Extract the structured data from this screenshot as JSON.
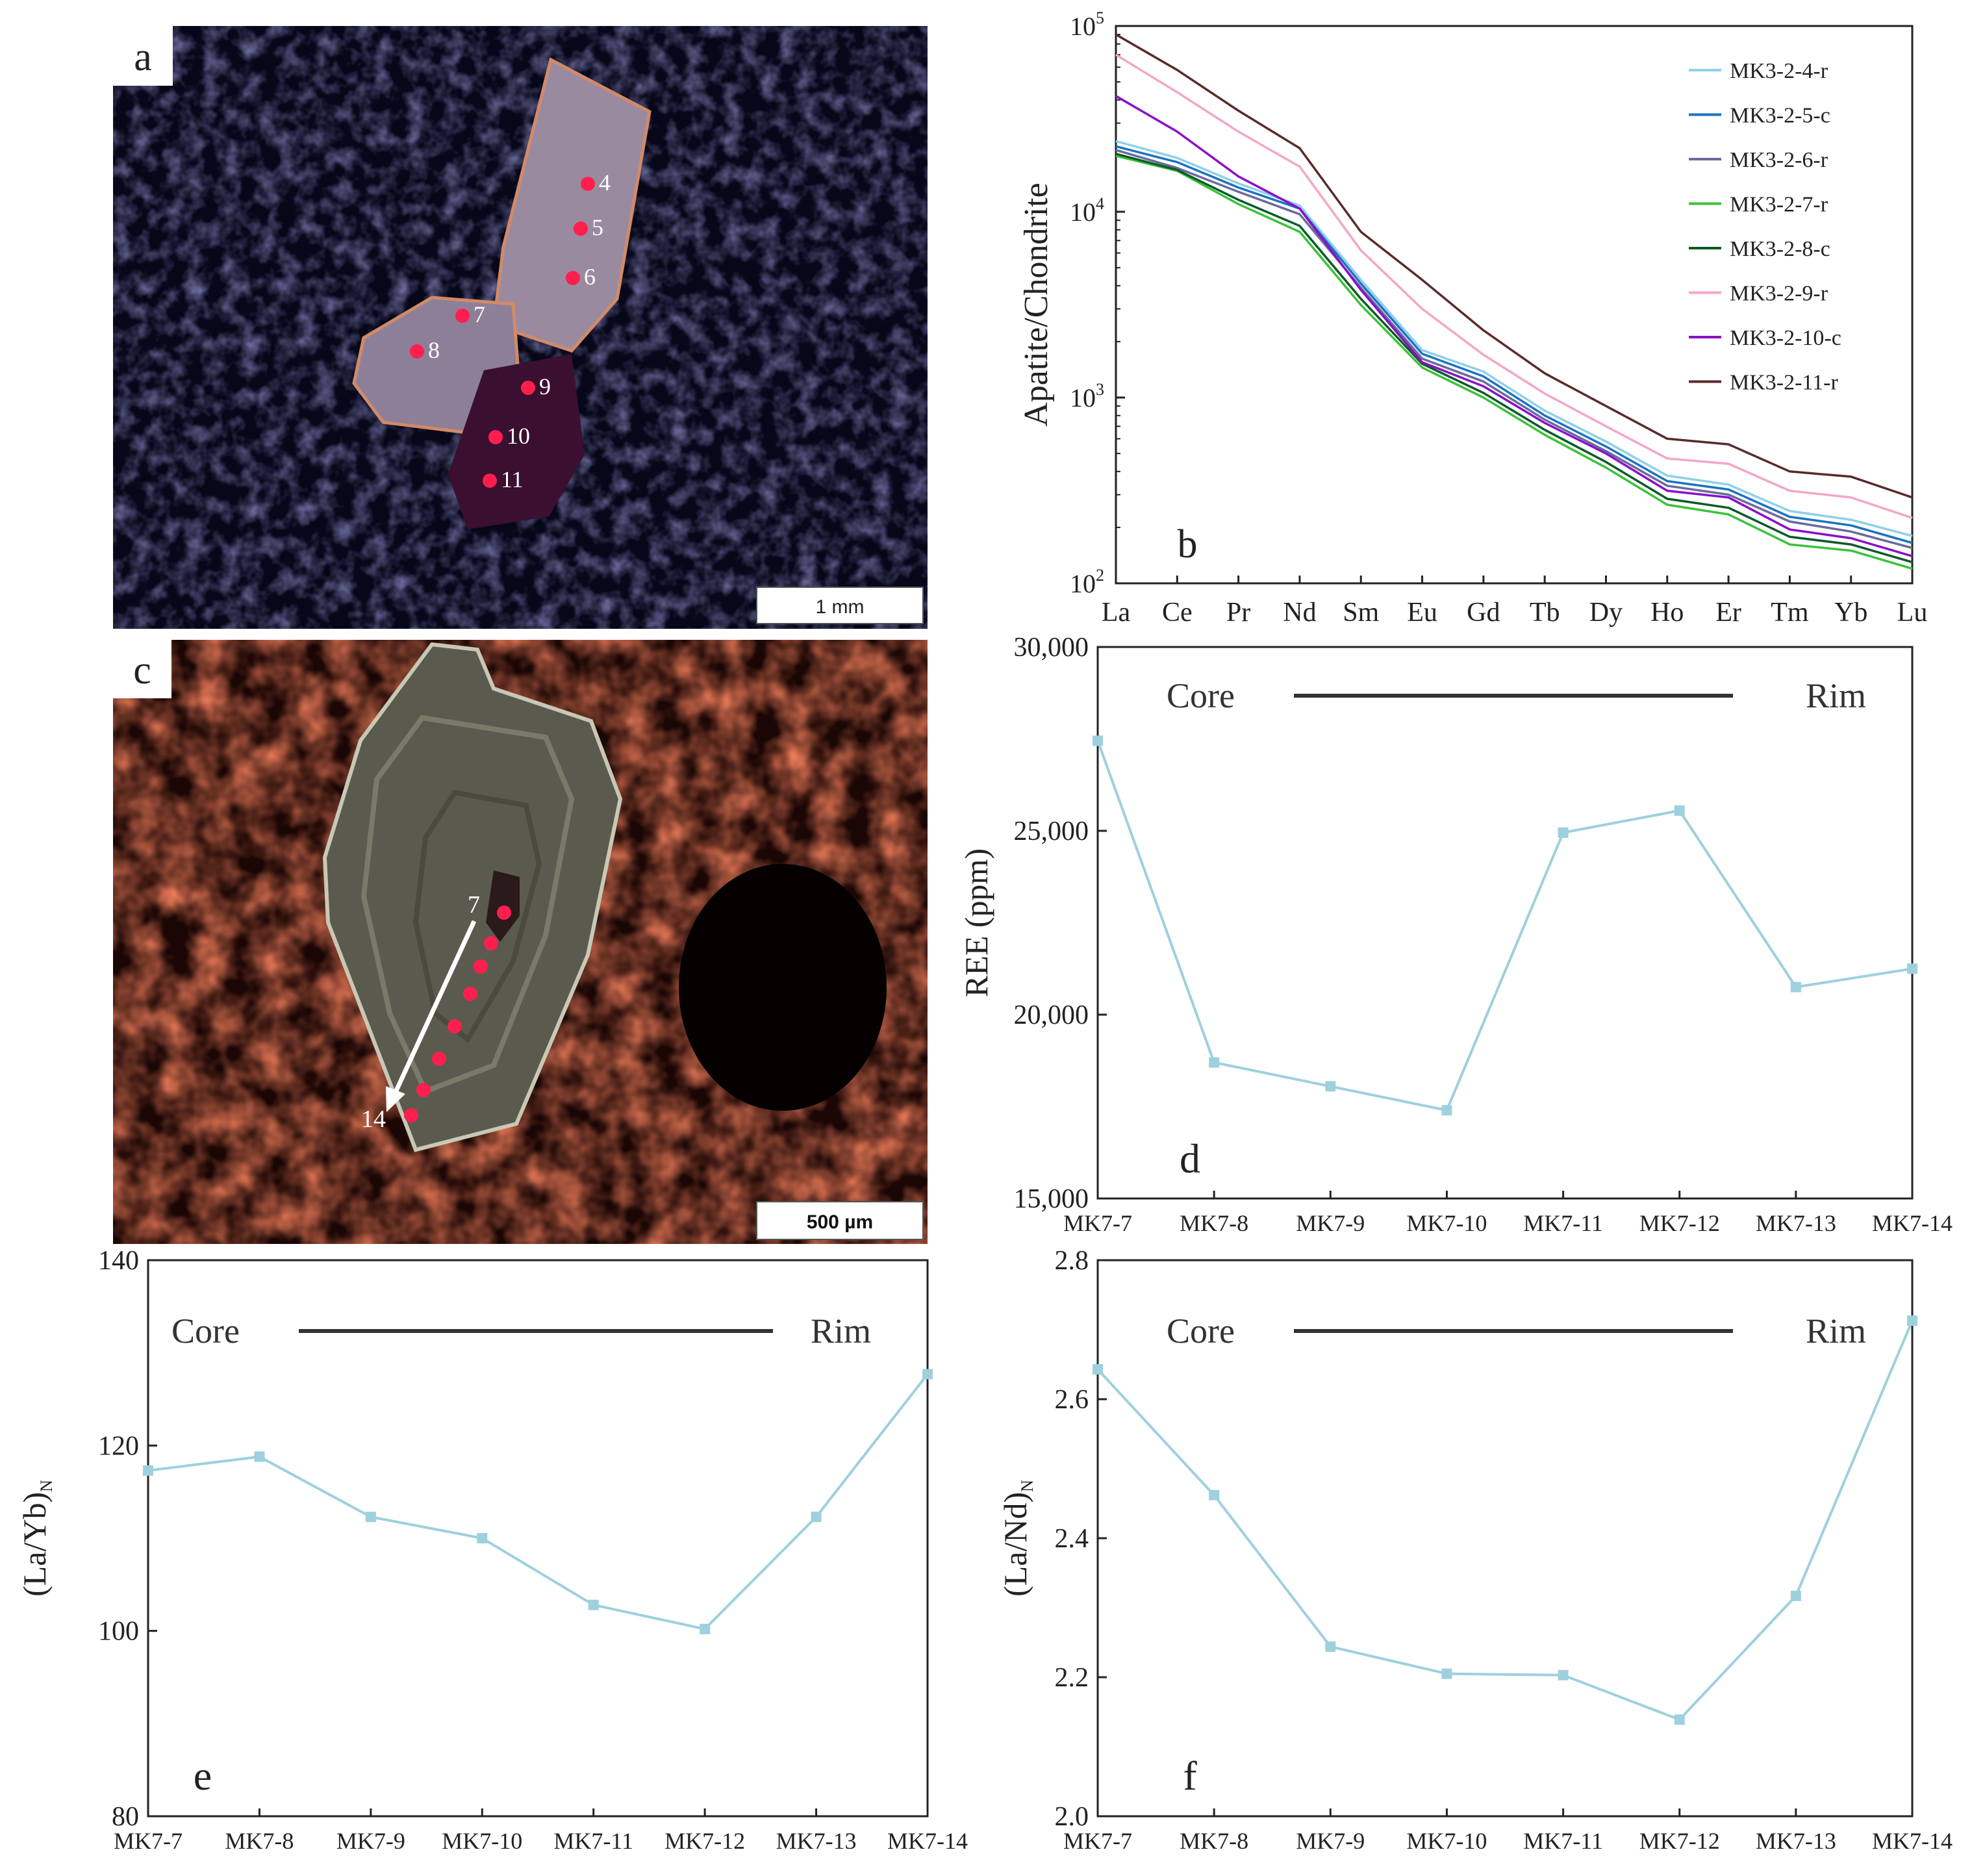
{
  "colors": {
    "light_blue": "#9ed0de",
    "pink": "#f2a6c0",
    "marker_red": "#ff1f4e",
    "dark_brown": "#5a2a2a",
    "purple": "#8a10c8",
    "cl_red": "#8a1e0c",
    "cl_blue": "#2a2a7a",
    "grain_grey": "#5b5a4e"
  },
  "panel_a": {
    "label": "a",
    "scale_bar": "1 mm",
    "points": [
      "4",
      "5",
      "6",
      "7",
      "8",
      "9",
      "10",
      "11"
    ]
  },
  "panel_c": {
    "label": "c",
    "scale_bar": "500 µm",
    "start_point": "7",
    "end_point": "14"
  },
  "chart_data": [
    {
      "panel": "b",
      "type": "line",
      "yscale": "log",
      "ylabel": "Apatite/Chondrite",
      "ylim": [
        100,
        100000
      ],
      "yticks": [
        {
          "base": "10",
          "exp": "2",
          "value": 100
        },
        {
          "base": "10",
          "exp": "3",
          "value": 1000
        },
        {
          "base": "10",
          "exp": "4",
          "value": 10000
        },
        {
          "base": "10",
          "exp": "5",
          "value": 100000
        }
      ],
      "categories": [
        "La",
        "Ce",
        "Pr",
        "Nd",
        "Sm",
        "Eu",
        "Gd",
        "Tb",
        "Dy",
        "Ho",
        "Er",
        "Tm",
        "Yb",
        "Lu"
      ],
      "legend_position": "top-right",
      "series": [
        {
          "name": "MK3-2-4-r",
          "color": "#8fd0e6",
          "values": [
            24000,
            19500,
            14200,
            10800,
            4300,
            1800,
            1380,
            850,
            580,
            380,
            340,
            245,
            220,
            180
          ]
        },
        {
          "name": "MK3-2-5-c",
          "color": "#1b73c4",
          "values": [
            22500,
            18500,
            13500,
            10400,
            4100,
            1720,
            1300,
            800,
            545,
            355,
            320,
            228,
            205,
            165
          ]
        },
        {
          "name": "MK3-2-6-r",
          "color": "#6a6a9a",
          "values": [
            21500,
            17200,
            12800,
            9700,
            3900,
            1620,
            1220,
            760,
            515,
            335,
            300,
            215,
            190,
            155
          ]
        },
        {
          "name": "MK3-2-7-r",
          "color": "#3ac23a",
          "values": [
            20000,
            16600,
            11000,
            7800,
            3150,
            1450,
            1000,
            630,
            420,
            265,
            235,
            162,
            150,
            120
          ]
        },
        {
          "name": "MK3-2-8-c",
          "color": "#0d5a2a",
          "values": [
            20500,
            16800,
            11600,
            8400,
            3400,
            1520,
            1060,
            670,
            450,
            285,
            255,
            178,
            162,
            130
          ]
        },
        {
          "name": "MK3-2-9-r",
          "color": "#f4a6c6",
          "values": [
            70000,
            44000,
            27000,
            17500,
            6200,
            3000,
            1700,
            1050,
            700,
            470,
            440,
            315,
            290,
            225
          ]
        },
        {
          "name": "MK3-2-10-c",
          "color": "#8a10c8",
          "values": [
            42000,
            27000,
            15500,
            10400,
            3800,
            1550,
            1150,
            730,
            500,
            315,
            290,
            195,
            175,
            140
          ]
        },
        {
          "name": "MK3-2-11-r",
          "color": "#5a2a2a",
          "values": [
            90000,
            58000,
            35000,
            22000,
            7800,
            4300,
            2300,
            1350,
            900,
            600,
            560,
            400,
            375,
            290
          ]
        }
      ]
    },
    {
      "panel": "d",
      "type": "line",
      "ylabel": "REE (ppm)",
      "ylim": [
        15000,
        30000
      ],
      "yticks": [
        "15,000",
        "20,000",
        "25,000",
        "30,000"
      ],
      "ytick_values": [
        15000,
        20000,
        25000,
        30000
      ],
      "categories": [
        "MK7-7",
        "MK7-8",
        "MK7-9",
        "MK7-10",
        "MK7-11",
        "MK7-12",
        "MK7-13",
        "MK7-14"
      ],
      "values": [
        27450,
        18700,
        18050,
        17400,
        24950,
        25550,
        20750,
        21250
      ],
      "annotation_start": "Core",
      "annotation_end": "Rim"
    },
    {
      "panel": "e",
      "type": "line",
      "ylabel": "(La/Yb)",
      "ylabel_sub": "N",
      "ylim": [
        80,
        140
      ],
      "yticks": [
        "80",
        "100",
        "120",
        "140"
      ],
      "ytick_values": [
        80,
        100,
        120,
        140
      ],
      "categories": [
        "MK7-7",
        "MK7-8",
        "MK7-9",
        "MK7-10",
        "MK7-11",
        "MK7-12",
        "MK7-13",
        "MK7-14"
      ],
      "values": [
        117.3,
        118.8,
        112.3,
        110.0,
        102.8,
        100.2,
        112.3,
        127.7
      ],
      "annotation_start": "Core",
      "annotation_end": "Rim"
    },
    {
      "panel": "f",
      "type": "line",
      "ylabel": "(La/Nd)",
      "ylabel_sub": "N",
      "ylim": [
        2.0,
        2.8
      ],
      "yticks": [
        "2.0",
        "2.2",
        "2.4",
        "2.6",
        "2.8"
      ],
      "ytick_values": [
        2.0,
        2.2,
        2.4,
        2.6,
        2.8
      ],
      "categories": [
        "MK7-7",
        "MK7-8",
        "MK7-9",
        "MK7-10",
        "MK7-11",
        "MK7-12",
        "MK7-13",
        "MK7-14"
      ],
      "values": [
        2.643,
        2.462,
        2.244,
        2.205,
        2.203,
        2.139,
        2.317,
        2.713
      ],
      "annotation_start": "Core",
      "annotation_end": "Rim"
    }
  ]
}
